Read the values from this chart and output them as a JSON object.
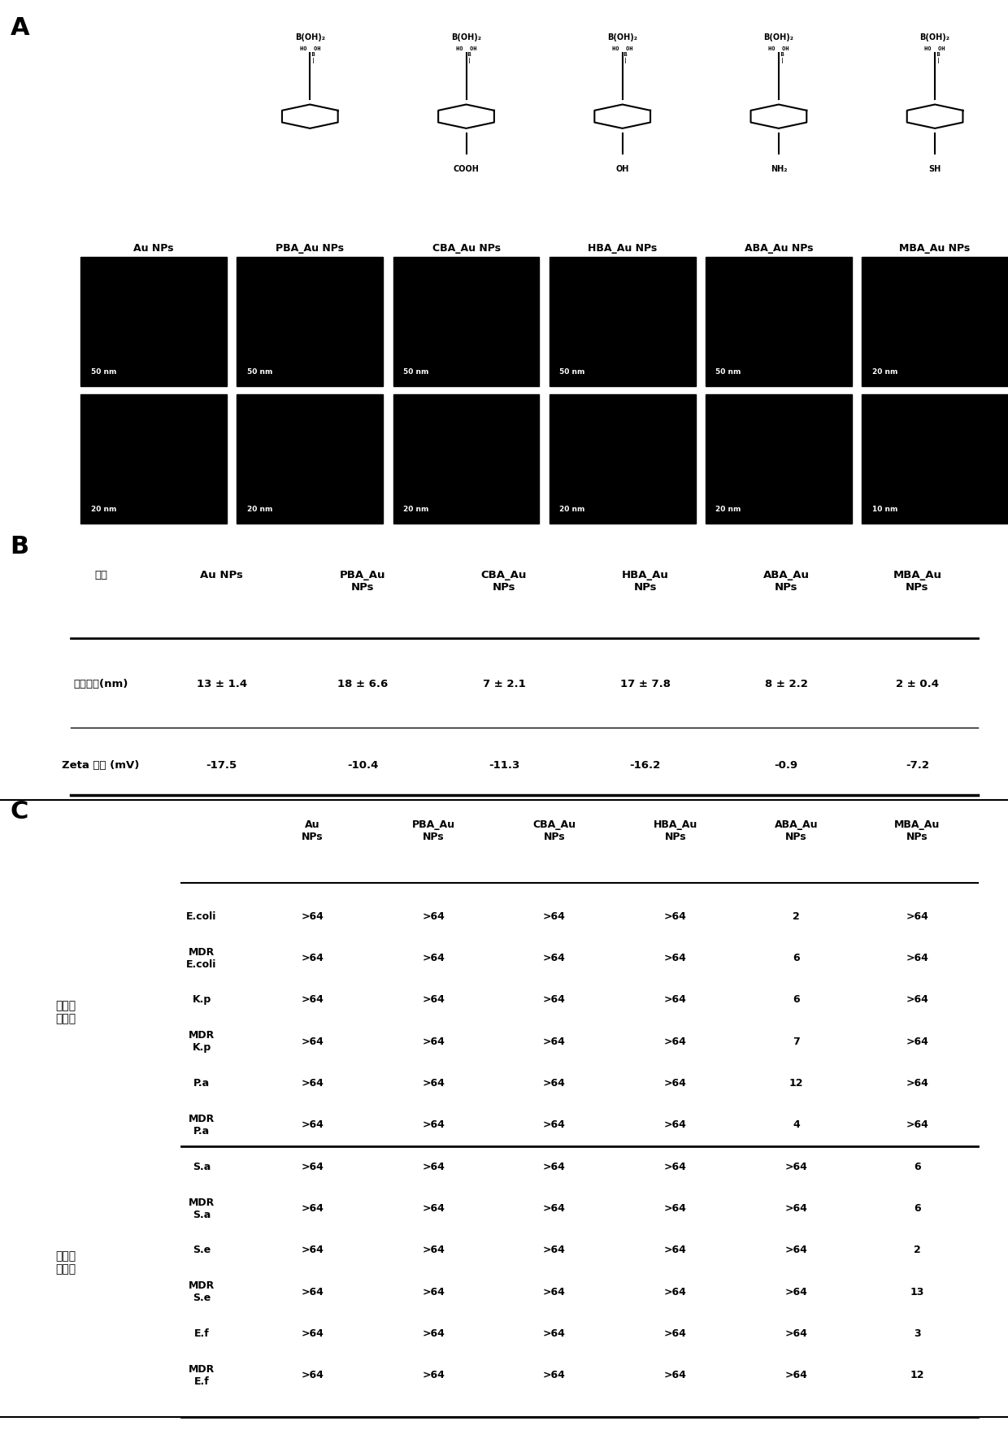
{
  "panel_A_label": "A",
  "panel_B_label": "B",
  "panel_C_label": "C",
  "section_B": {
    "header": [
      "材料",
      "Au NPs",
      "PBA_Au\nNPs",
      "CBA_Au\nNPs",
      "HBA_Au\nNPs",
      "ABA_Au\nNPs",
      "MBA_Au\nNPs"
    ],
    "rows": [
      {
        "label": "平均直径(nm)",
        "values": [
          "13 ± 1.4",
          "18 ± 6.6",
          "7 ± 2.1",
          "17 ± 7.8",
          "8 ± 2.2",
          "2 ± 0.4"
        ]
      },
      {
        "label": "Zeta 电位 (mV)",
        "values": [
          "-17.5",
          "-10.4",
          "-11.3",
          "-16.2",
          "-0.9",
          "-7.2"
        ]
      }
    ]
  },
  "section_C": {
    "col_headers": [
      "Au\nNPs",
      "PBA_Au\nNPs",
      "CBA_Au\nNPs",
      "HBA_Au\nNPs",
      "ABA_Au\nNPs",
      "MBA_Au\nNPs"
    ],
    "group1_label": "革兰氏\n阴性菌",
    "group2_label": "革兰氏\n阳性菌",
    "group1_rows": [
      {
        "bacteria": "E.coli",
        "values": [
          ">64",
          ">64",
          ">64",
          ">64",
          "2",
          ">64"
        ]
      },
      {
        "bacteria": "MDR\nE.coli",
        "values": [
          ">64",
          ">64",
          ">64",
          ">64",
          "6",
          ">64"
        ]
      },
      {
        "bacteria": "K.p",
        "values": [
          ">64",
          ">64",
          ">64",
          ">64",
          "6",
          ">64"
        ]
      },
      {
        "bacteria": "MDR\nK.p",
        "values": [
          ">64",
          ">64",
          ">64",
          ">64",
          "7",
          ">64"
        ]
      },
      {
        "bacteria": "P.a",
        "values": [
          ">64",
          ">64",
          ">64",
          ">64",
          "12",
          ">64"
        ]
      },
      {
        "bacteria": "MDR\nP.a",
        "values": [
          ">64",
          ">64",
          ">64",
          ">64",
          "4",
          ">64"
        ]
      }
    ],
    "group2_rows": [
      {
        "bacteria": "S.a",
        "values": [
          ">64",
          ">64",
          ">64",
          ">64",
          ">64",
          "6"
        ]
      },
      {
        "bacteria": "MDR\nS.a",
        "values": [
          ">64",
          ">64",
          ">64",
          ">64",
          ">64",
          "6"
        ]
      },
      {
        "bacteria": "S.e",
        "values": [
          ">64",
          ">64",
          ">64",
          ">64",
          ">64",
          "2"
        ]
      },
      {
        "bacteria": "MDR\nS.e",
        "values": [
          ">64",
          ">64",
          ">64",
          ">64",
          ">64",
          "13"
        ]
      },
      {
        "bacteria": "E.f",
        "values": [
          ">64",
          ">64",
          ">64",
          ">64",
          ">64",
          "3"
        ]
      },
      {
        "bacteria": "MDR\nE.f",
        "values": [
          ">64",
          ">64",
          ">64",
          ">64",
          ">64",
          "12"
        ]
      }
    ]
  },
  "image_bg_color": "#000000",
  "text_color": "#000000",
  "bold_font": true
}
